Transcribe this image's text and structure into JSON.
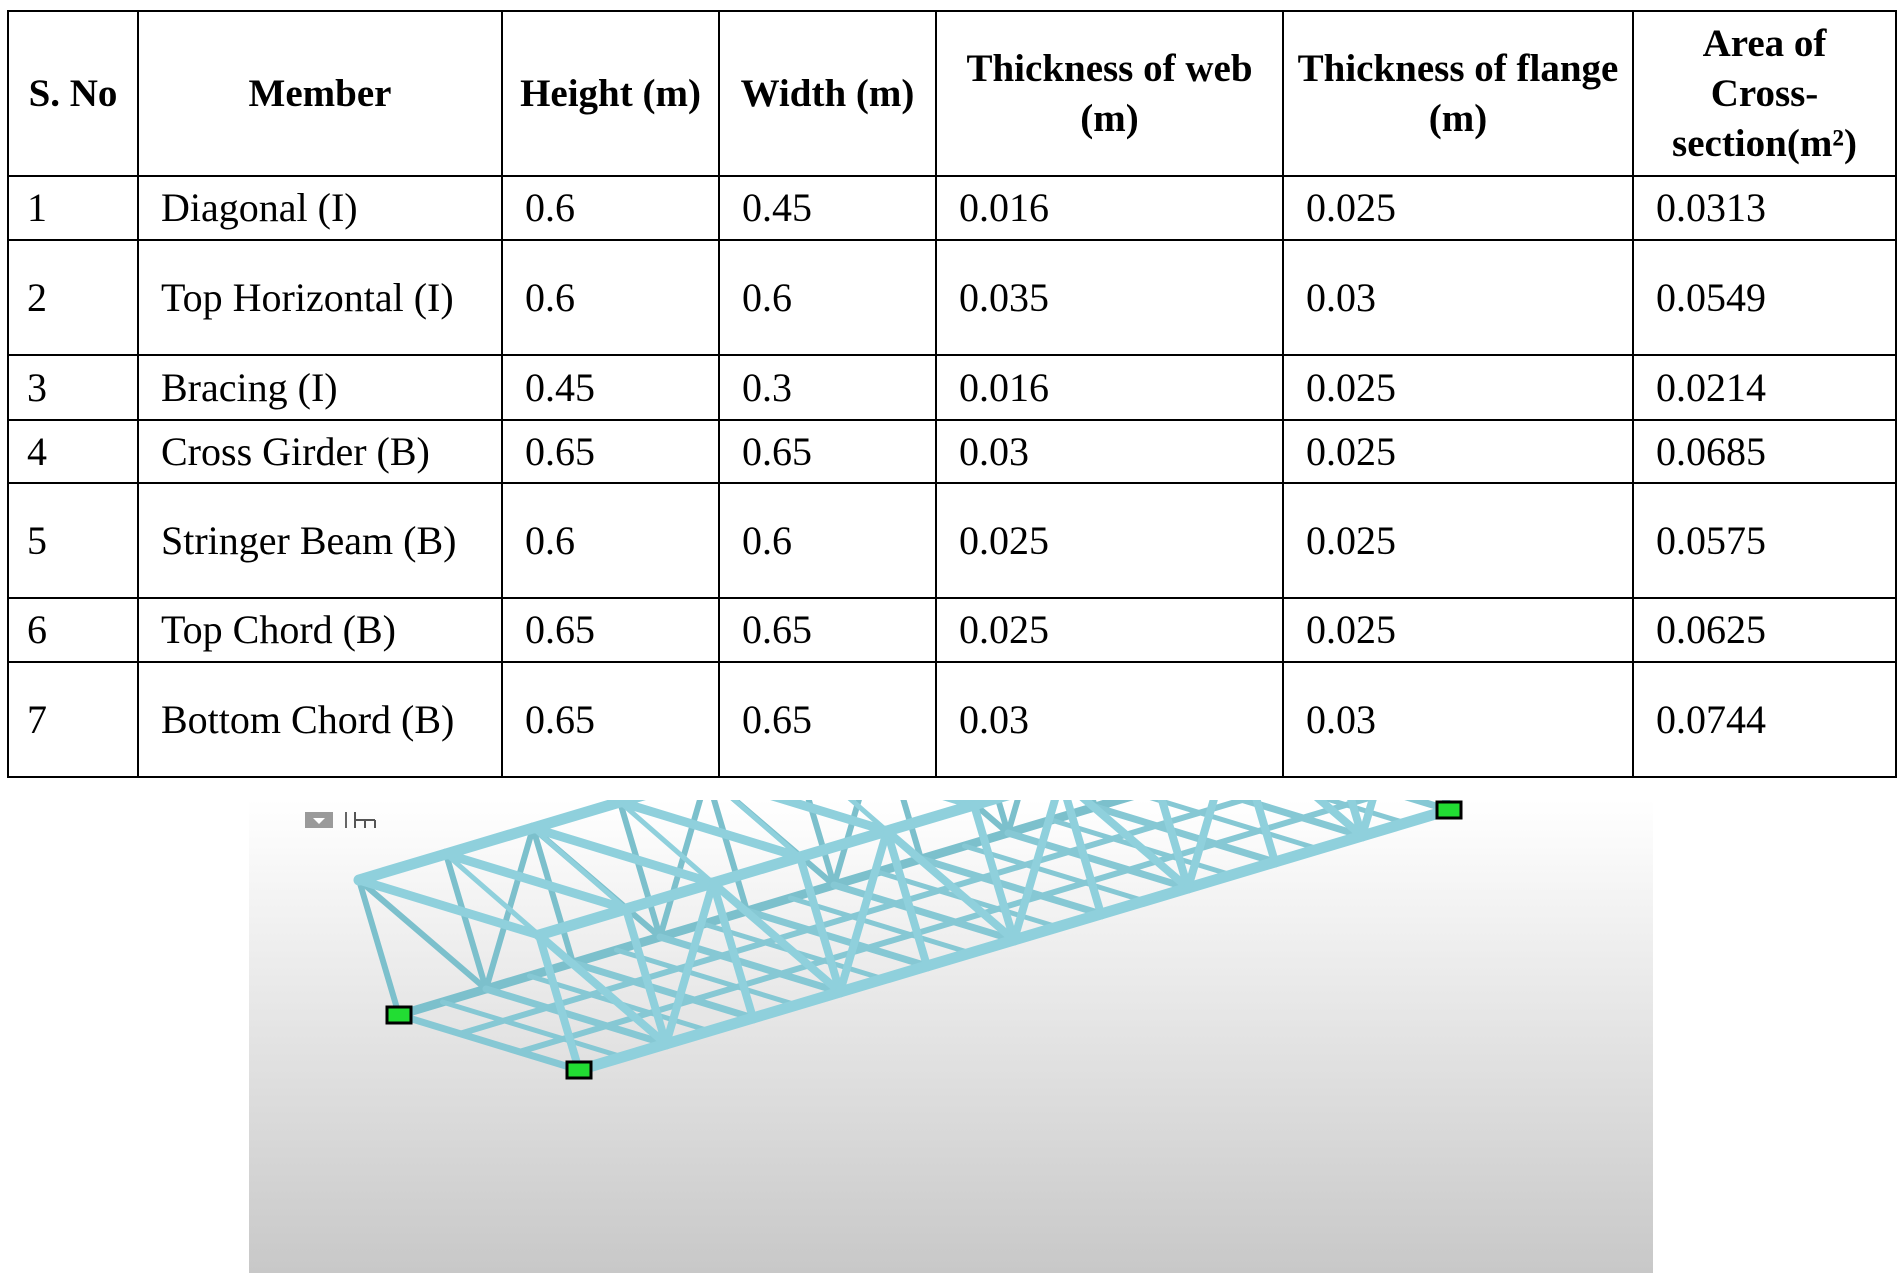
{
  "table": {
    "header": [
      "S. No",
      "Member",
      "Height (m)",
      "Width (m)",
      "Thickness of web (m)",
      "Thickness of flange (m)",
      "Area of Cross-section(m²)"
    ],
    "rows": [
      [
        "1",
        "Diagonal (I)",
        "0.6",
        "0.45",
        "0.016",
        "0.025",
        "0.0313"
      ],
      [
        "2",
        "Top Horizontal (I)",
        "0.6",
        "0.6",
        "0.035",
        "0.03",
        "0.0549"
      ],
      [
        "3",
        "Bracing (I)",
        "0.45",
        "0.3",
        "0.016",
        "0.025",
        "0.0214"
      ],
      [
        "4",
        "Cross Girder (B)",
        "0.65",
        "0.65",
        "0.03",
        "0.025",
        "0.0685"
      ],
      [
        "5",
        "Stringer Beam (B)",
        "0.6",
        "0.6",
        "0.025",
        "0.025",
        "0.0575"
      ],
      [
        "6",
        "Top Chord (B)",
        "0.65",
        "0.65",
        "0.025",
        "0.025",
        "0.0625"
      ],
      [
        "7",
        "Bottom Chord (B)",
        "0.65",
        "0.65",
        "0.03",
        "0.03",
        "0.0744"
      ]
    ]
  }
}
